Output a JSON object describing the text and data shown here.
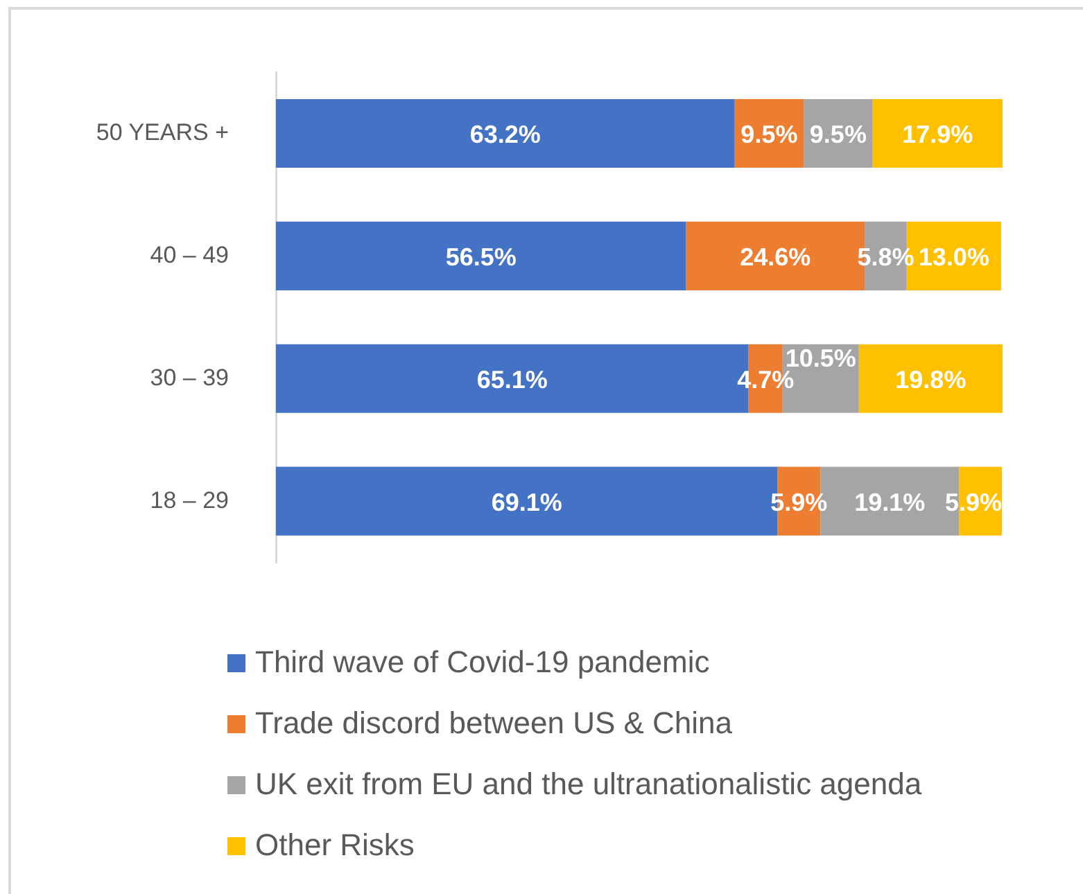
{
  "chart_data": {
    "type": "bar",
    "orientation": "horizontal",
    "stacked": true,
    "categories": [
      "50 YEARS +",
      "40 – 49",
      "30 – 39",
      "18 – 29"
    ],
    "series": [
      {
        "name": "Third wave of Covid-19 pandemic",
        "color": "#4472c4",
        "values": [
          63.2,
          56.5,
          65.1,
          69.1
        ],
        "value_labels": [
          "63.2%",
          "56.5%",
          "65.1%",
          "69.1%"
        ]
      },
      {
        "name": "Trade discord between US & China",
        "color": "#ed7d31",
        "values": [
          9.5,
          24.6,
          4.7,
          5.9
        ],
        "value_labels": [
          "9.5%",
          "24.6%",
          "4.7%",
          "5.9%"
        ]
      },
      {
        "name": "UK exit from EU and the ultranationalistic agenda",
        "color": "#a5a5a5",
        "values": [
          9.5,
          5.8,
          10.5,
          19.1
        ],
        "value_labels": [
          "9.5%",
          "5.8%",
          "10.5%",
          "19.1%"
        ]
      },
      {
        "name": "Other Risks",
        "color": "#ffc000",
        "values": [
          17.9,
          13.0,
          19.8,
          5.9
        ],
        "value_labels": [
          "17.9%",
          "13.0%",
          "19.8%",
          "5.9%"
        ]
      }
    ],
    "legend": "bottom"
  }
}
